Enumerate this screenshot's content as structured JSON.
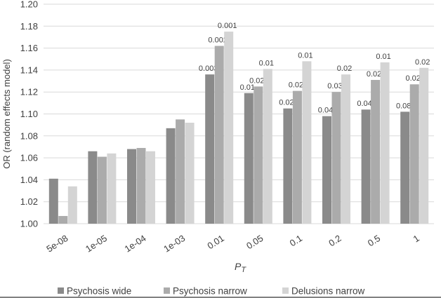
{
  "figure_colors": {
    "background": "#ffffff",
    "grid": "#d9d9d9",
    "axis_text": "#404040",
    "data_label_text": "#404040",
    "bottom_rule": "#595959"
  },
  "chart_data": {
    "type": "bar",
    "title": "",
    "xlabel": "PT",
    "xlabel_main": "P",
    "xlabel_sub": "T",
    "ylabel": "OR (random effects model)",
    "categories": [
      "5e-08",
      "1e-05",
      "1e-04",
      "1e-03",
      "0.01",
      "0.05",
      "0.1",
      "0.2",
      "0.5",
      "1"
    ],
    "ylim": [
      1.0,
      1.2
    ],
    "ytick_step": 0.02,
    "grid": "horizontal",
    "legend_position": "bottom",
    "series": [
      {
        "name": "Psychosis wide",
        "color": "#8a8a8a",
        "values": [
          1.041,
          1.066,
          1.068,
          1.087,
          1.136,
          1.119,
          1.105,
          1.098,
          1.104,
          1.102
        ],
        "labels": [
          "",
          "",
          "",
          "",
          "0.003",
          "0.01",
          "0.02",
          "0.04",
          "0.04",
          "0.08"
        ]
      },
      {
        "name": "Psychosis narrow",
        "color": "#ababab",
        "values": [
          1.007,
          1.061,
          1.069,
          1.095,
          1.162,
          1.125,
          1.121,
          1.12,
          1.131,
          1.127
        ],
        "labels": [
          "",
          "",
          "",
          "",
          "0.002",
          "0.02",
          "0.02",
          "0.03",
          "0.02",
          "0.02"
        ]
      },
      {
        "name": "Delusions narrow",
        "color": "#d4d4d4",
        "values": [
          1.034,
          1.064,
          1.066,
          1.092,
          1.175,
          1.141,
          1.148,
          1.136,
          1.147,
          1.142
        ],
        "labels": [
          "",
          "",
          "",
          "",
          "0.001",
          "0.01",
          "0.01",
          "0.02",
          "0.01",
          "0.02"
        ]
      }
    ]
  }
}
